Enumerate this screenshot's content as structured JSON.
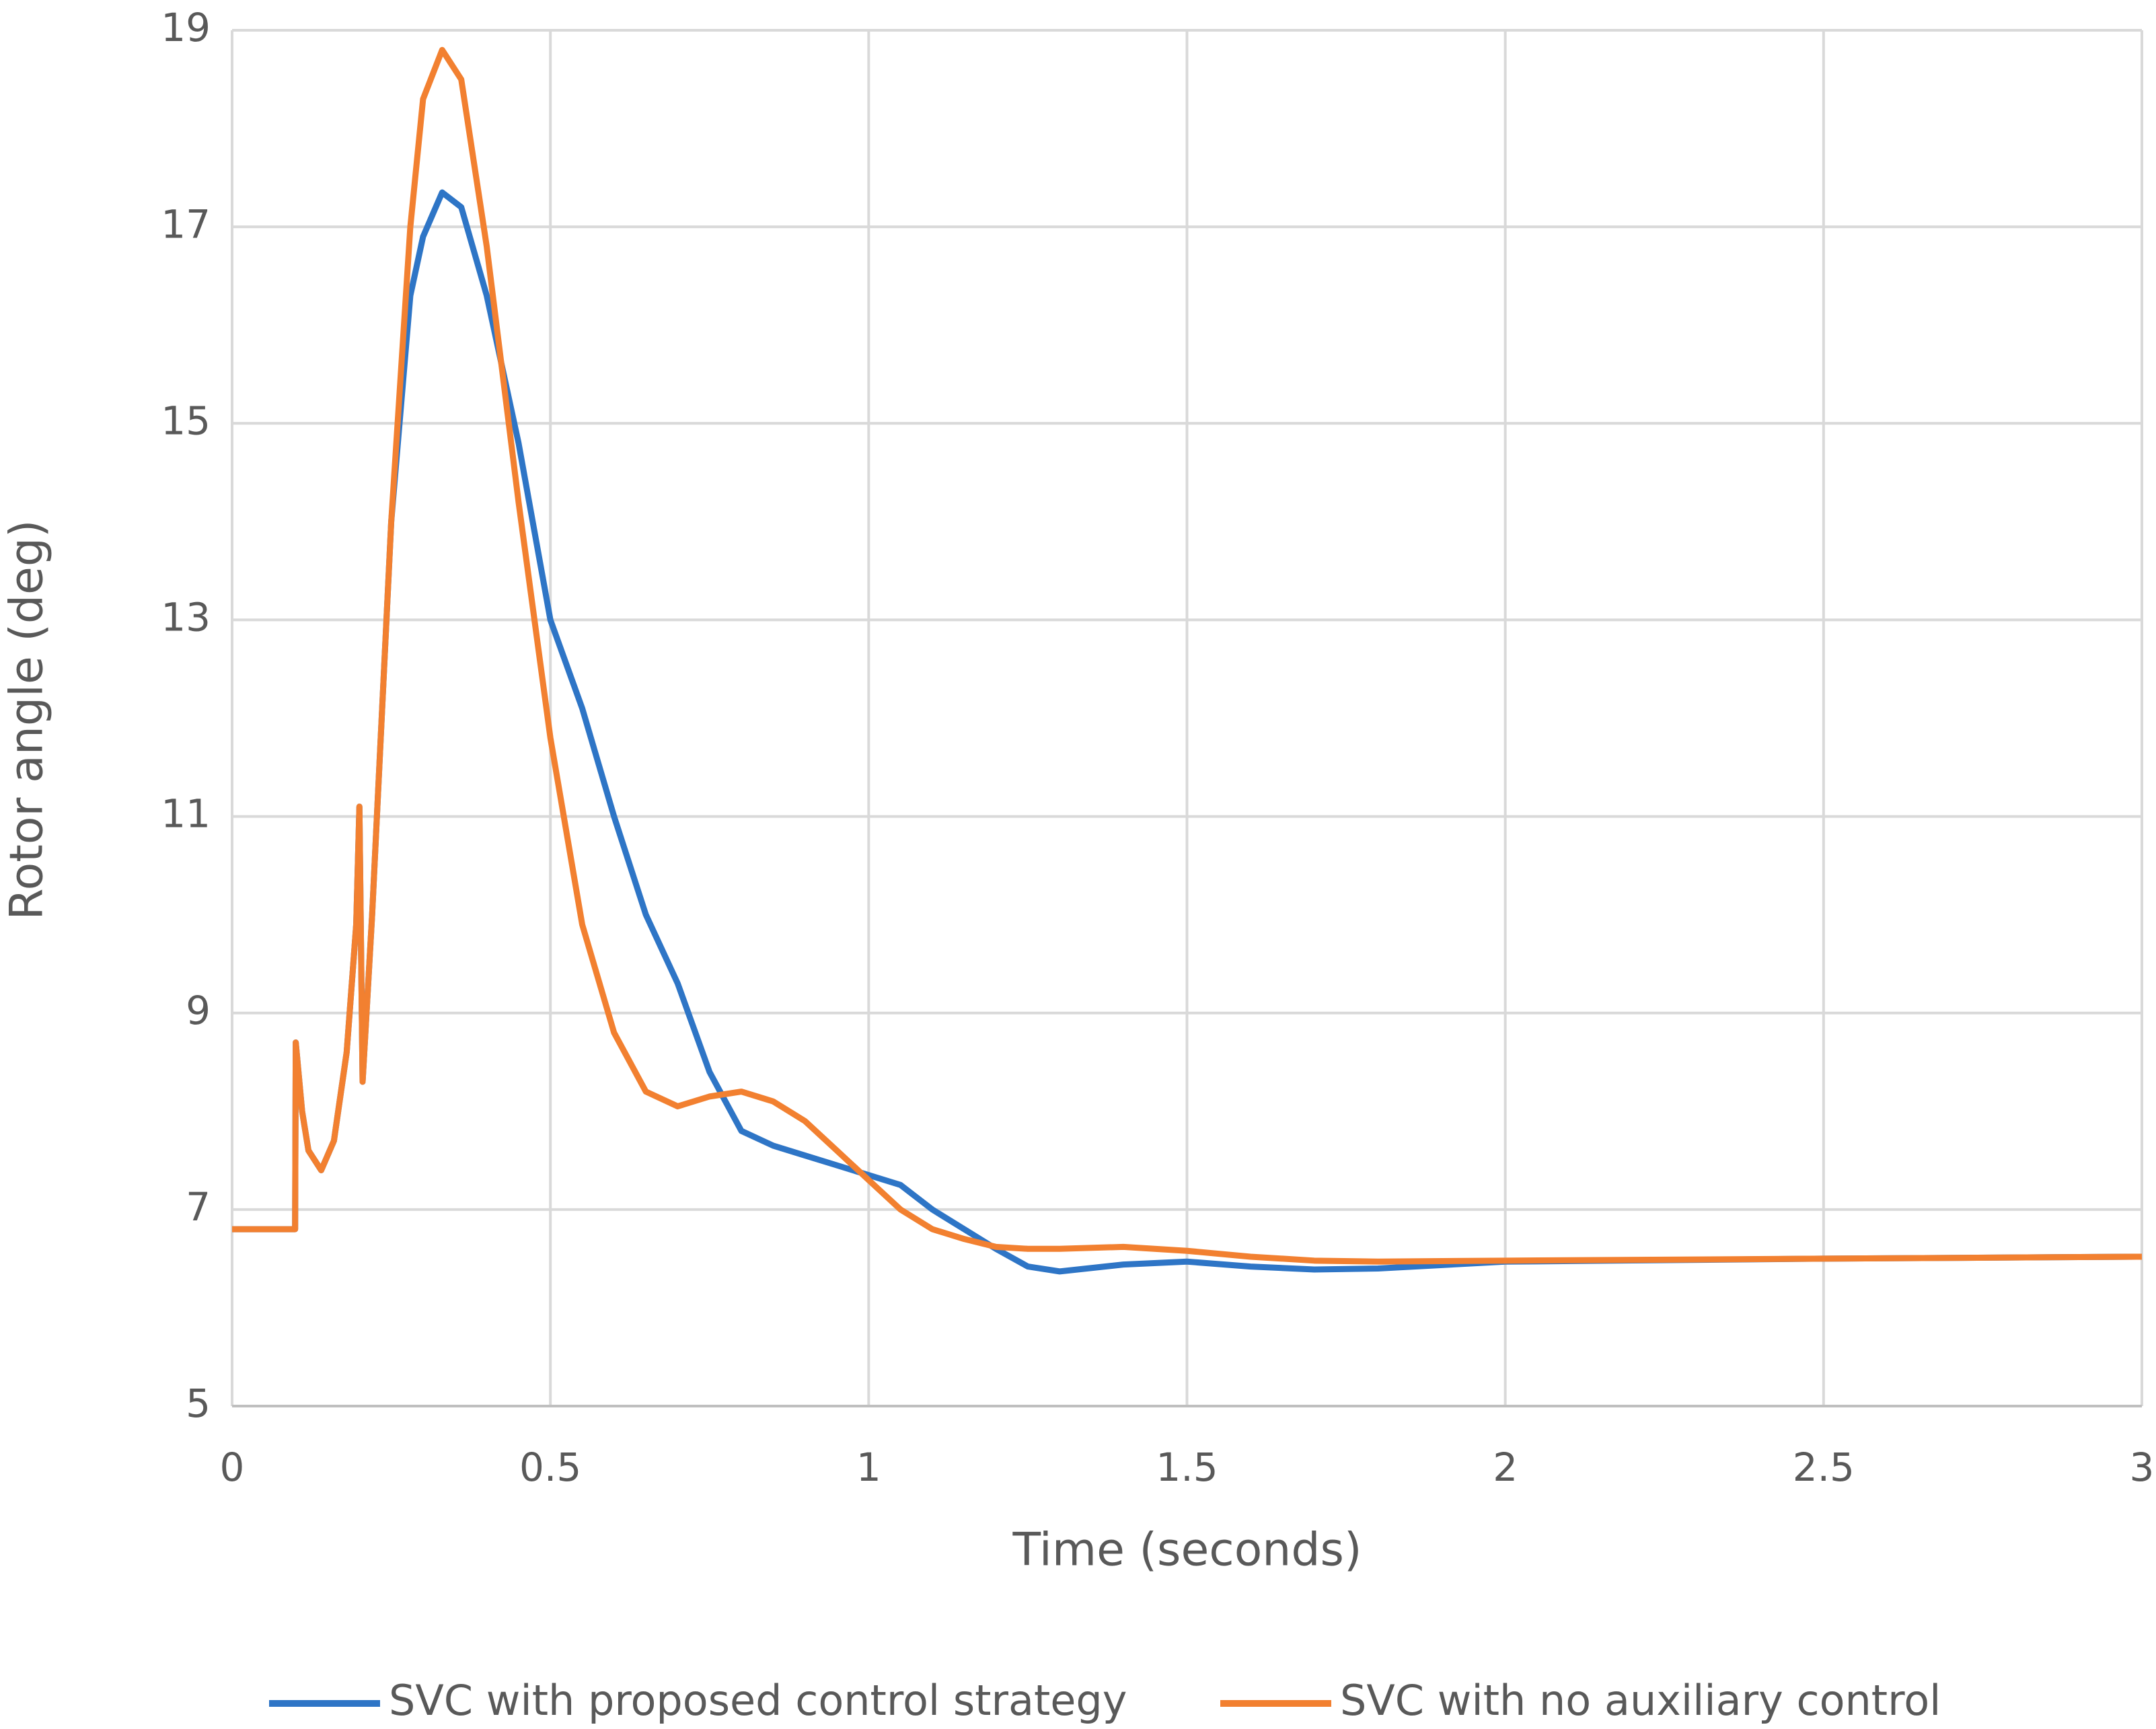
{
  "chart_data": {
    "type": "line",
    "x_label": "Time (seconds)",
    "y_label": "Rotor angle (deg)",
    "x": [
      0,
      0.099,
      0.1,
      0.11,
      0.12,
      0.14,
      0.16,
      0.18,
      0.195,
      0.2,
      0.205,
      0.22,
      0.25,
      0.28,
      0.3,
      0.33,
      0.36,
      0.4,
      0.45,
      0.5,
      0.55,
      0.6,
      0.65,
      0.7,
      0.75,
      0.8,
      0.85,
      0.9,
      0.95,
      1.0,
      1.05,
      1.1,
      1.15,
      1.2,
      1.25,
      1.3,
      1.4,
      1.5,
      1.6,
      1.7,
      1.8,
      2.0,
      2.5,
      3.0
    ],
    "series": [
      {
        "name": "SVC with proposed control strategy",
        "color": "#2e75c6",
        "values": [
          6.8,
          6.8,
          8.7,
          8.0,
          7.6,
          7.4,
          7.7,
          8.6,
          9.9,
          11.1,
          8.3,
          10.0,
          14.0,
          16.3,
          16.9,
          17.35,
          17.2,
          16.3,
          14.8,
          13.0,
          12.1,
          11.0,
          10.0,
          9.3,
          8.4,
          7.8,
          7.65,
          7.55,
          7.45,
          7.35,
          7.25,
          7.0,
          6.8,
          6.6,
          6.42,
          6.37,
          6.44,
          6.47,
          6.42,
          6.39,
          6.4,
          6.47,
          6.5,
          6.52
        ]
      },
      {
        "name": "SVC with no auxiliary control",
        "color": "#f28030",
        "values": [
          6.8,
          6.8,
          8.7,
          8.0,
          7.6,
          7.4,
          7.7,
          8.6,
          9.9,
          11.1,
          8.3,
          10.0,
          14.0,
          17.0,
          18.3,
          18.8,
          18.5,
          16.8,
          14.2,
          11.8,
          9.9,
          8.8,
          8.2,
          8.05,
          8.15,
          8.2,
          8.1,
          7.9,
          7.6,
          7.3,
          7.0,
          6.8,
          6.7,
          6.62,
          6.6,
          6.6,
          6.62,
          6.58,
          6.52,
          6.48,
          6.47,
          6.48,
          6.5,
          6.52
        ]
      }
    ],
    "xlim": [
      0,
      3
    ],
    "xticks": [
      0,
      0.5,
      1,
      1.5,
      2,
      2.5,
      3
    ],
    "ylim": [
      5,
      19
    ],
    "yticks": [
      5,
      7,
      9,
      11,
      13,
      15,
      17,
      19
    ],
    "grid": true,
    "legend": "bottom"
  }
}
